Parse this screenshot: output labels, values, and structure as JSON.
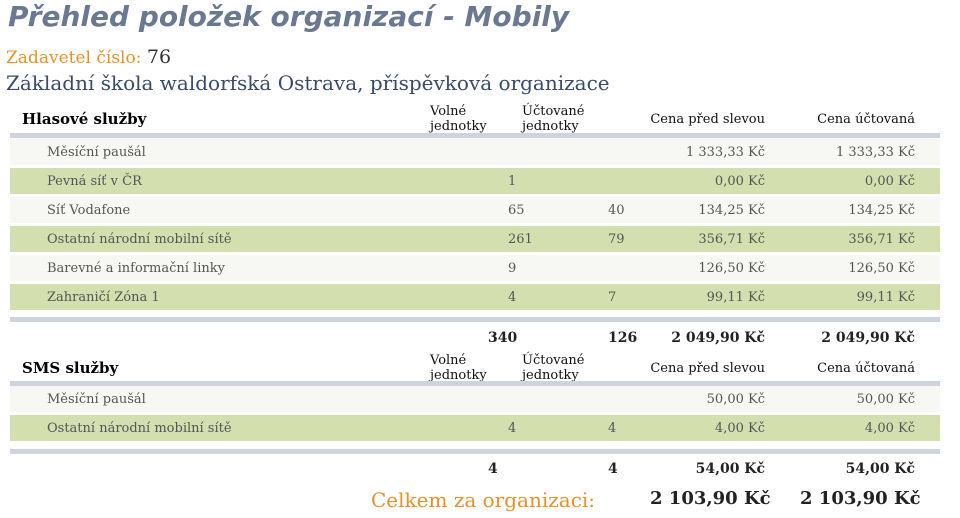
{
  "title": "Přehled položek organizací - Mobily",
  "submitter_label": "Zadavetel číslo:",
  "submitter_number": "76",
  "school_name": "Základní škola waldorfská Ostrava, příspěvková organizace",
  "columns": {
    "free_units": "Volné jednotky",
    "billed_units": "Účtované jednotky",
    "price_before": "Cena před slevou",
    "price_billed": "Cena účtovaná"
  },
  "voice": {
    "title": "Hlasové služby",
    "rows": [
      {
        "label": "Měsíční paušál",
        "free": "",
        "billed": "",
        "pre": "1 333,33 Kč",
        "fin": "1 333,33 Kč"
      },
      {
        "label": "Pevná síť v ČR",
        "free": "1",
        "billed": "",
        "pre": "0,00 Kč",
        "fin": "0,00 Kč"
      },
      {
        "label": "Síť Vodafone",
        "free": "65",
        "billed": "40",
        "pre": "134,25 Kč",
        "fin": "134,25 Kč"
      },
      {
        "label": "Ostatní národní mobilní sítě",
        "free": "261",
        "billed": "79",
        "pre": "356,71 Kč",
        "fin": "356,71 Kč"
      },
      {
        "label": "Barevné a informační linky",
        "free": "9",
        "billed": "",
        "pre": "126,50 Kč",
        "fin": "126,50 Kč"
      },
      {
        "label": "Zahraničí Zóna 1",
        "free": "4",
        "billed": "7",
        "pre": "99,11 Kč",
        "fin": "99,11 Kč"
      }
    ],
    "total": {
      "free": "340",
      "billed": "126",
      "pre": "2 049,90 Kč",
      "fin": "2 049,90 Kč"
    }
  },
  "sms": {
    "title": "SMS služby",
    "rows": [
      {
        "label": "Měsíční paušál",
        "free": "",
        "billed": "",
        "pre": "50,00 Kč",
        "fin": "50,00 Kč"
      },
      {
        "label": "Ostatní národní mobilní sítě",
        "free": "4",
        "billed": "4",
        "pre": "4,00 Kč",
        "fin": "4,00 Kč"
      }
    ],
    "total": {
      "free": "4",
      "billed": "4",
      "pre": "54,00 Kč",
      "fin": "54,00 Kč"
    }
  },
  "grand_total": {
    "label": "Celkem za organizaci:",
    "pre": "2 103,90 Kč",
    "fin": "2 103,90 Kč"
  }
}
